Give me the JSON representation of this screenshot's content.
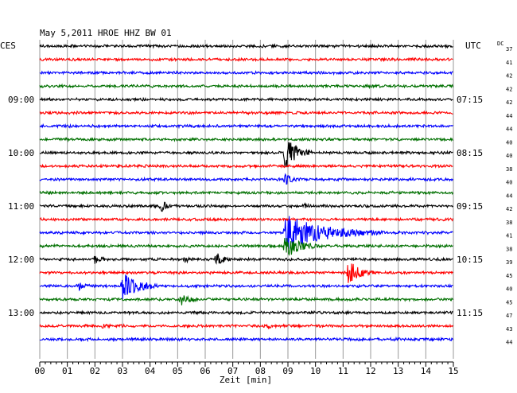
{
  "chart_data": {
    "type": "line",
    "title": "May 5,2011   HROE HHZ BW 01",
    "left_timezone": "CES",
    "right_timezone": "UTC",
    "dc_label": "DC",
    "xlabel": "Zeit [min]",
    "x_range": [
      0,
      15
    ],
    "x_ticks": [
      "00",
      "01",
      "02",
      "03",
      "04",
      "05",
      "06",
      "07",
      "08",
      "09",
      "10",
      "11",
      "12",
      "13",
      "14",
      "15"
    ],
    "trace_colors": [
      "#000000",
      "#ff0000",
      "#0000ff",
      "#007000"
    ],
    "hour_labels": [
      {
        "row": 4,
        "left": "09:00",
        "right": "07:15"
      },
      {
        "row": 8,
        "left": "10:00",
        "right": "08:15"
      },
      {
        "row": 12,
        "left": "11:00",
        "right": "09:15"
      },
      {
        "row": 16,
        "left": "12:00",
        "right": "10:15"
      },
      {
        "row": 20,
        "left": "13:00",
        "right": "11:15"
      }
    ],
    "dc_values": [
      "37",
      "41",
      "42",
      "42",
      "42",
      "44",
      "44",
      "40",
      "40",
      "38",
      "40",
      "44",
      "42",
      "38",
      "41",
      "38",
      "39",
      "45",
      "40",
      "45",
      "47",
      "43",
      "44"
    ],
    "events": [
      {
        "row": 8,
        "minute": 8.9,
        "amplitude": 1.6,
        "duration": 1.0
      },
      {
        "row": 10,
        "minute": 8.9,
        "amplitude": 0.5,
        "duration": 0.6
      },
      {
        "row": 12,
        "minute": 4.4,
        "amplitude": 0.45,
        "duration": 0.6
      },
      {
        "row": 12,
        "minute": 9.6,
        "amplitude": 0.2,
        "duration": 0.3
      },
      {
        "row": 14,
        "minute": 8.9,
        "amplitude": 1.7,
        "duration": 3.5
      },
      {
        "row": 15,
        "minute": 8.9,
        "amplitude": 1.2,
        "duration": 1.2
      },
      {
        "row": 16,
        "minute": 2.0,
        "amplitude": 0.35,
        "duration": 0.5
      },
      {
        "row": 16,
        "minute": 5.3,
        "amplitude": 0.3,
        "duration": 0.3
      },
      {
        "row": 16,
        "minute": 6.4,
        "amplitude": 0.55,
        "duration": 0.7
      },
      {
        "row": 17,
        "minute": 11.2,
        "amplitude": 1.2,
        "duration": 0.9
      },
      {
        "row": 18,
        "minute": 1.4,
        "amplitude": 0.35,
        "duration": 0.6
      },
      {
        "row": 18,
        "minute": 3.0,
        "amplitude": 1.3,
        "duration": 1.4
      },
      {
        "row": 19,
        "minute": 5.1,
        "amplitude": 0.55,
        "duration": 0.8
      },
      {
        "row": 21,
        "minute": 2.3,
        "amplitude": 0.15,
        "duration": 0.4
      },
      {
        "row": 21,
        "minute": 8.3,
        "amplitude": 0.15,
        "duration": 0.3
      },
      {
        "row": 23,
        "minute": 11.2,
        "amplitude": 0.25,
        "duration": 0.5
      }
    ]
  }
}
